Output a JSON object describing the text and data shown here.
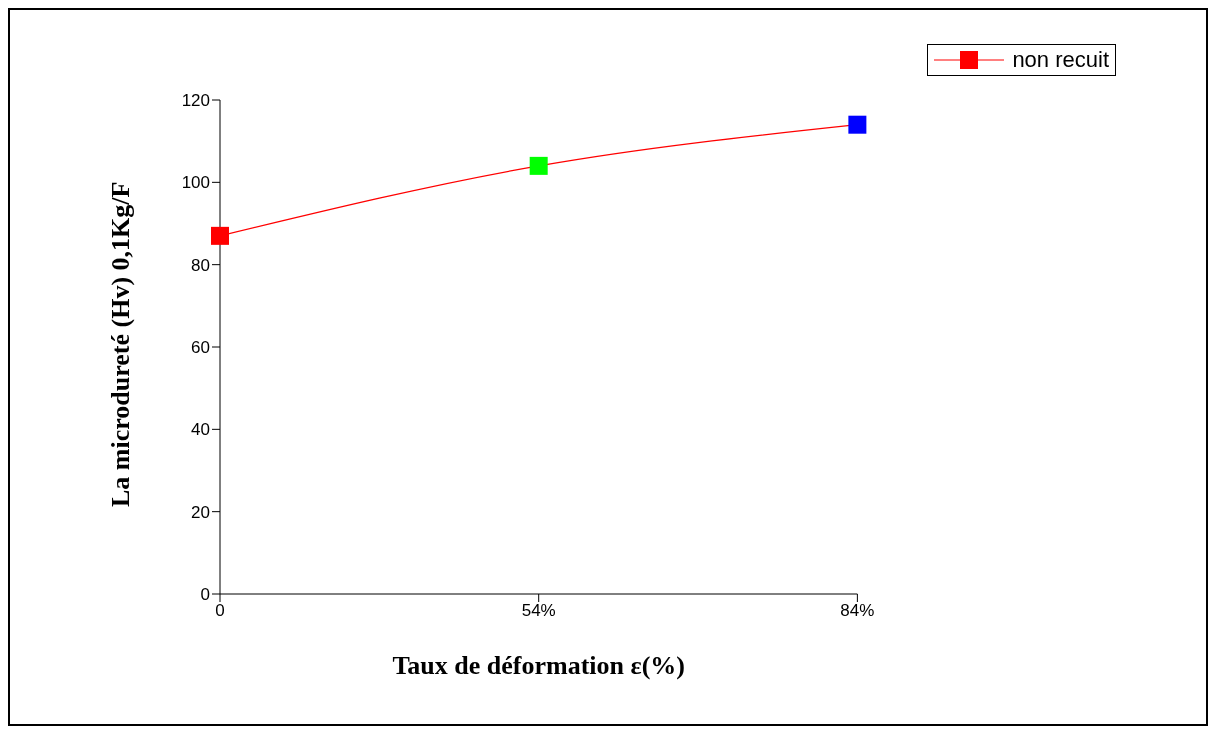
{
  "chart_data": {
    "type": "line",
    "xlabel": "Taux de déformation ε(%)",
    "ylabel": "La microdureté (Hv) 0,1Kg/F",
    "categories": [
      "0",
      "54%",
      "84%"
    ],
    "series": [
      {
        "name": "non recuit",
        "color": "#ff0000",
        "values": [
          87,
          104,
          114
        ],
        "colors": [
          "#ff0000",
          "#00ff00",
          "#0000ff"
        ]
      }
    ],
    "ylim": [
      0,
      120
    ],
    "yticks": [
      0,
      20,
      40,
      60,
      80,
      100,
      120
    ],
    "grid": false,
    "legend": "top right",
    "marker": "square",
    "line_style": "solid"
  }
}
